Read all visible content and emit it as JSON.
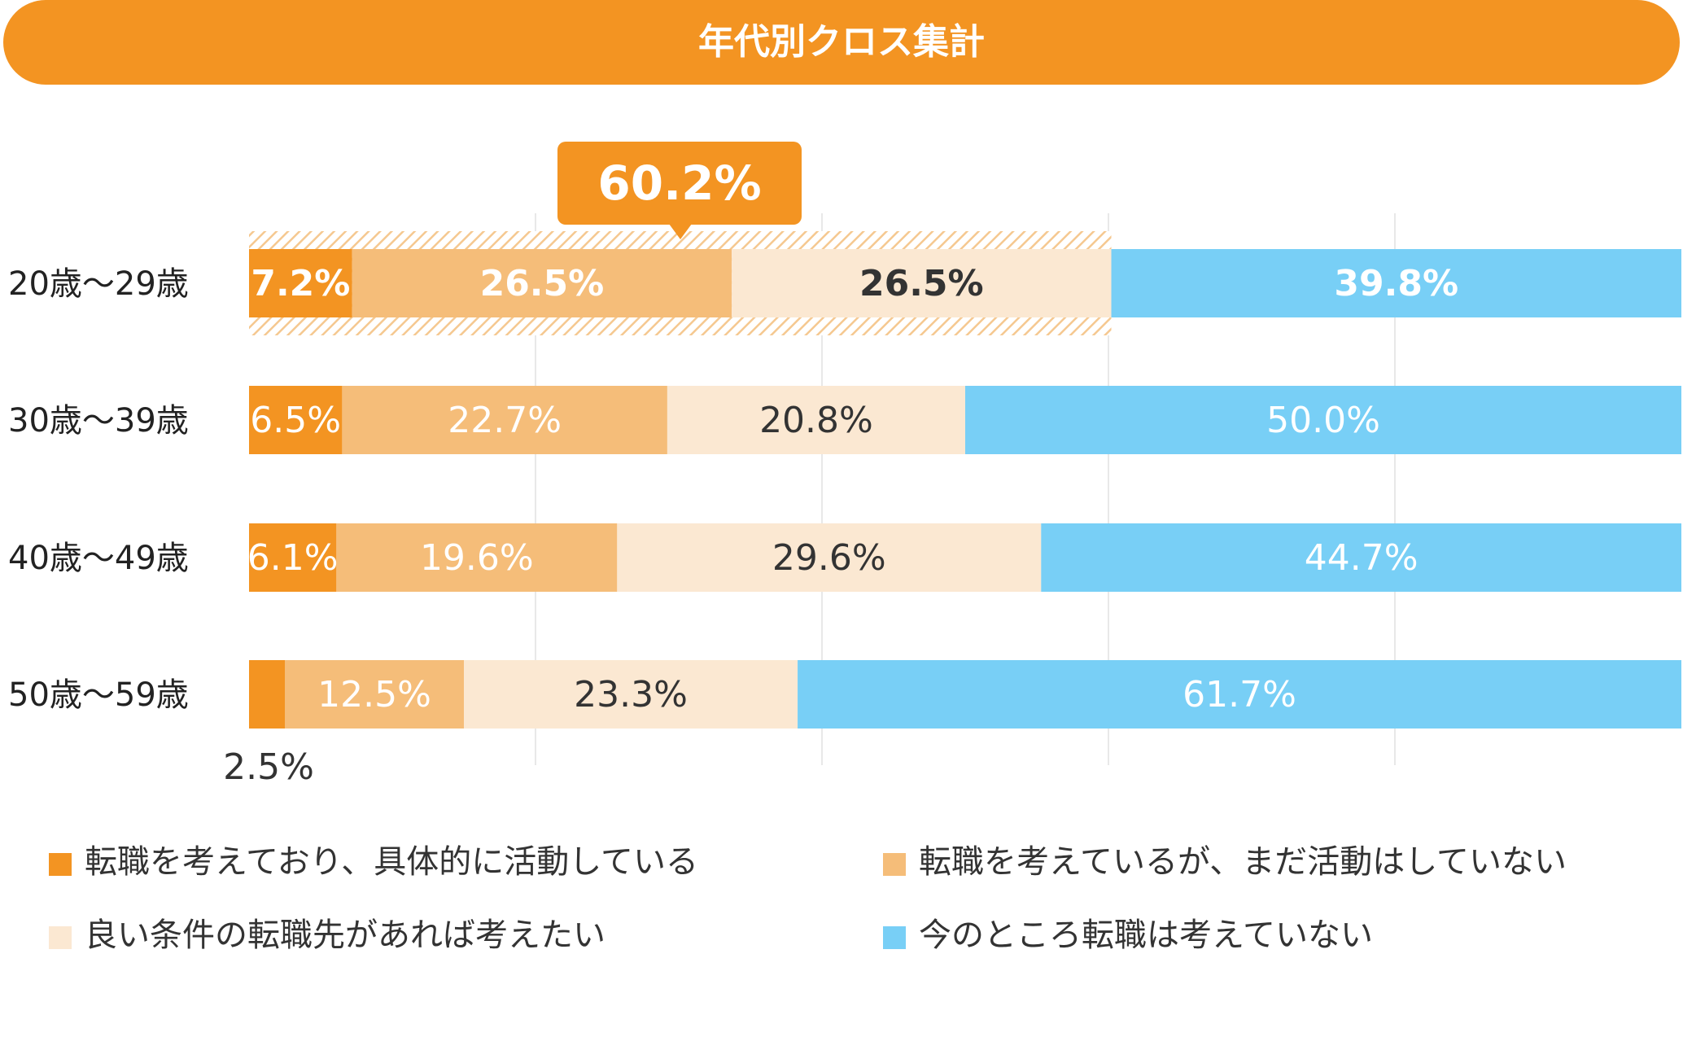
{
  "title": "年代別クロス集計",
  "callout": {
    "label": "60.2%",
    "value": 60.2,
    "color": "#f39422"
  },
  "colors": {
    "active": "#f39422",
    "considering": "#f5bd79",
    "conditional": "#fbe8d2",
    "not_considering": "#78cff6",
    "hatch": "#f5c890",
    "grid": "#e8e8e8"
  },
  "legend": [
    {
      "label": "転職を考えており、具体的に活動している",
      "color": "#f39422"
    },
    {
      "label": "転職を考えているが、まだ活動はしていない",
      "color": "#f5bd79"
    },
    {
      "label": "良い条件の転職先があれば考えたい",
      "color": "#fbe8d2"
    },
    {
      "label": "今のところ転職は考えていない",
      "color": "#78cff6"
    }
  ],
  "chart_data": {
    "type": "bar",
    "orientation": "horizontal",
    "stacked": true,
    "categories": [
      "20歳〜29歳",
      "30歳〜39歳",
      "40歳〜49歳",
      "50歳〜59歳"
    ],
    "series": [
      {
        "name": "転職を考えており、具体的に活動している",
        "values": [
          7.2,
          6.5,
          6.1,
          2.5
        ],
        "labels": [
          "7.2%",
          "6.5%",
          "6.1%",
          "2.5%"
        ]
      },
      {
        "name": "転職を考えているが、まだ活動はしていない",
        "values": [
          26.5,
          22.7,
          19.6,
          12.5
        ],
        "labels": [
          "26.5%",
          "22.7%",
          "19.6%",
          "12.5%"
        ]
      },
      {
        "name": "良い条件の転職先があれば考えたい",
        "values": [
          26.5,
          20.8,
          29.6,
          23.3
        ],
        "labels": [
          "26.5%",
          "20.8%",
          "29.6%",
          "23.3%"
        ]
      },
      {
        "name": "今のところ転職は考えていない",
        "values": [
          39.8,
          50.0,
          44.7,
          61.7
        ],
        "labels": [
          "39.8%",
          "50.0%",
          "44.7%",
          "61.7%"
        ]
      }
    ],
    "xlim": [
      0,
      100
    ],
    "grid": true,
    "legend_position": "bottom",
    "highlight_category": "20歳〜29歳",
    "highlight_total": "60.2%"
  }
}
